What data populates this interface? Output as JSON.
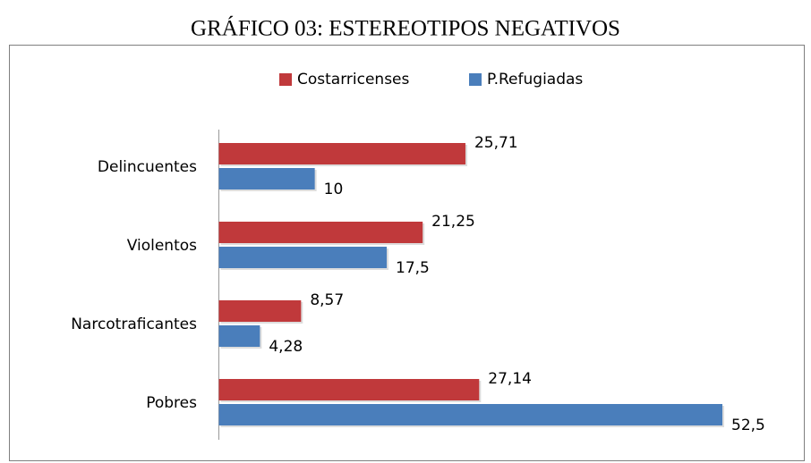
{
  "chart_data": {
    "type": "hbar",
    "title": "GRÁFICO 03: ESTEREOTIPOS NEGATIVOS",
    "categories": [
      "Delincuentes",
      "Violentos",
      "Narcotraficantes",
      "Pobres"
    ],
    "series": [
      {
        "name": "Costarricenses",
        "color": "#c0393b",
        "values": [
          25.71,
          21.25,
          8.57,
          27.14
        ],
        "value_labels": [
          "25,71",
          "21,25",
          "8,57",
          "27,14"
        ]
      },
      {
        "name": "P.Refugiadas",
        "color": "#4a7ebb",
        "values": [
          10,
          17.5,
          4.28,
          52.5
        ],
        "value_labels": [
          "10",
          "17,5",
          "4,28",
          "52,5"
        ]
      }
    ],
    "legend": "top"
  }
}
